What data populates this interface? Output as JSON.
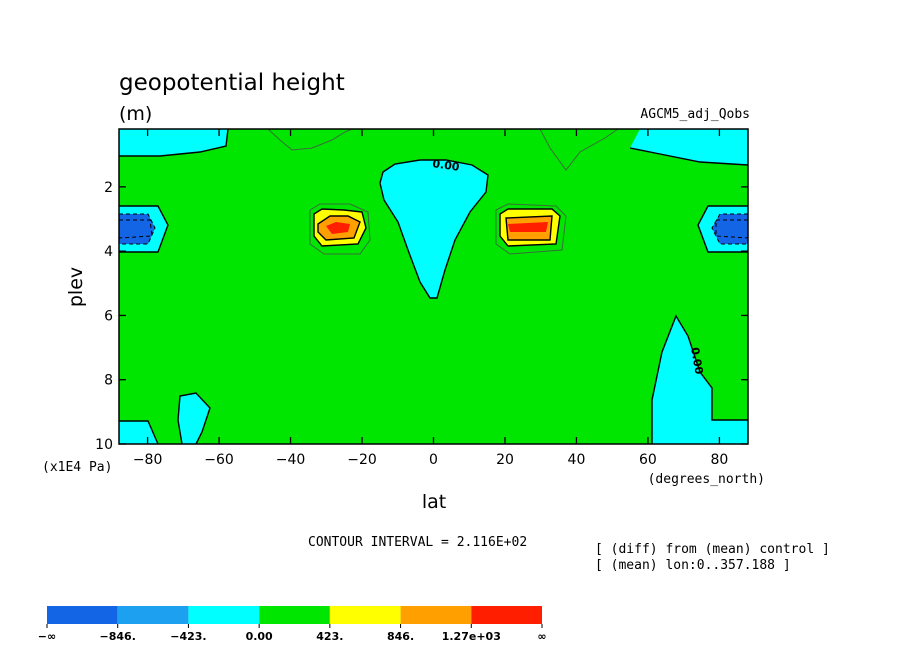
{
  "chart_data": {
    "type": "contour",
    "title": "geopotential height",
    "units": "(m)",
    "dataset": "AGCM5_adj_Qobs",
    "xlabel": "lat",
    "xunits": "(degrees_north)",
    "ylabel": "plev",
    "yunits": "(x1E4 Pa)",
    "xlim": [
      -88,
      88
    ],
    "ylim": [
      0.2,
      10
    ],
    "x_ticks": [
      {
        "value": -80,
        "label": "−80"
      },
      {
        "value": -60,
        "label": "−60"
      },
      {
        "value": -40,
        "label": "−40"
      },
      {
        "value": -20,
        "label": "−20"
      },
      {
        "value": 0,
        "label": "0"
      },
      {
        "value": 20,
        "label": "20"
      },
      {
        "value": 40,
        "label": "40"
      },
      {
        "value": 60,
        "label": "60"
      },
      {
        "value": 80,
        "label": "80"
      }
    ],
    "y_ticks": [
      {
        "value": 2,
        "label": "2"
      },
      {
        "value": 4,
        "label": "4"
      },
      {
        "value": 6,
        "label": "6"
      },
      {
        "value": 8,
        "label": "8"
      },
      {
        "value": 10,
        "label": "10"
      }
    ],
    "contour_labels": [
      "0.00",
      "0.00"
    ],
    "contour_interval_text": "CONTOUR INTERVAL = 2.116E+02",
    "notes": [
      "[ (diff) from (mean) control ]",
      "[ (mean) lon:0..357.188 ]"
    ],
    "colorbar": {
      "colors": [
        "#1464e6",
        "#1ea0f0",
        "#00ffff",
        "#00e600",
        "#ffff00",
        "#ffa000",
        "#ff1e00"
      ],
      "labels": [
        "−∞",
        "−846.",
        "−423.",
        "0.00",
        "423.",
        "846.",
        "1.27e+03",
        "∞"
      ]
    }
  }
}
